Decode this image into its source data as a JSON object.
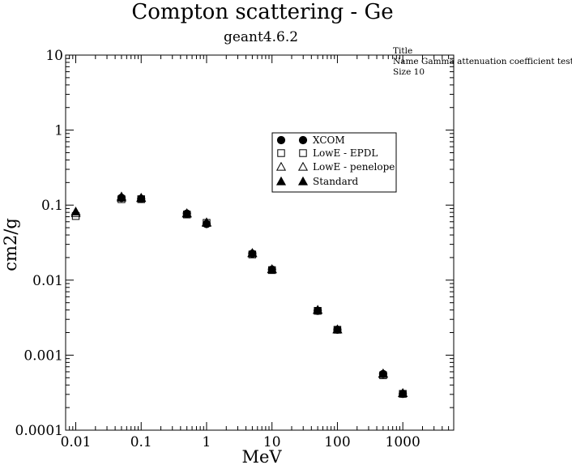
{
  "chart_data": {
    "type": "scatter",
    "title": "Compton scattering - Ge",
    "subtitle": "geant4.6.2",
    "xlabel": "MeV",
    "ylabel": "cm2/g",
    "xscale": "log",
    "yscale": "log",
    "xlim": [
      0.007,
      6000
    ],
    "ylim": [
      0.0001,
      10
    ],
    "x_ticks": [
      {
        "value": 0.01,
        "label": "0.01"
      },
      {
        "value": 0.1,
        "label": "0.1"
      },
      {
        "value": 1,
        "label": "1"
      },
      {
        "value": 10,
        "label": "10"
      },
      {
        "value": 100,
        "label": "100"
      },
      {
        "value": 1000,
        "label": "1000"
      }
    ],
    "y_ticks": [
      {
        "value": 10,
        "label": "10"
      },
      {
        "value": 1,
        "label": "1"
      },
      {
        "value": 0.1,
        "label": "0.1"
      },
      {
        "value": 0.01,
        "label": "0.01"
      },
      {
        "value": 0.001,
        "label": "0.001"
      },
      {
        "value": 0.0001,
        "label": "0.0001"
      }
    ],
    "grid": false,
    "legend_position": "upper-right",
    "info_box": {
      "line1": "Title",
      "line2": "Name  Gamma attenuation coefficient test",
      "line3": "Size  10"
    },
    "series": [
      {
        "name": "XCOM",
        "marker": "circle-filled",
        "x": [
          0.05,
          0.1,
          0.5,
          1,
          5,
          10,
          50,
          100,
          500,
          1000
        ],
        "y": [
          0.125,
          0.121,
          0.077,
          0.056,
          0.0225,
          0.0138,
          0.0039,
          0.00218,
          0.00056,
          0.000305
        ]
      },
      {
        "name": "LowE - EPDL",
        "marker": "square-open",
        "x": [
          0.01,
          0.05,
          0.1,
          0.5,
          1,
          5,
          10,
          50,
          100,
          500,
          1000
        ],
        "y": [
          0.0715,
          0.12,
          0.12,
          0.075,
          0.058,
          0.022,
          0.0136,
          0.0039,
          0.00218,
          0.00054,
          0.000305
        ]
      },
      {
        "name": "LowE - penelope",
        "marker": "triangle-open",
        "x": [
          0.01,
          0.05,
          0.1,
          0.5,
          1,
          5,
          10,
          50,
          100,
          500,
          1000
        ],
        "y": [
          0.078,
          0.126,
          0.124,
          0.077,
          0.058,
          0.0228,
          0.0139,
          0.004,
          0.0022,
          0.00056,
          0.00031
        ]
      },
      {
        "name": "Standard",
        "marker": "triangle-filled",
        "x": [
          0.01,
          0.05,
          0.1,
          0.5,
          1,
          5,
          10,
          50,
          100,
          500,
          1000
        ],
        "y": [
          0.082,
          0.13,
          0.125,
          0.078,
          0.059,
          0.023,
          0.014,
          0.004,
          0.0022,
          0.00057,
          0.000312
        ]
      }
    ]
  }
}
